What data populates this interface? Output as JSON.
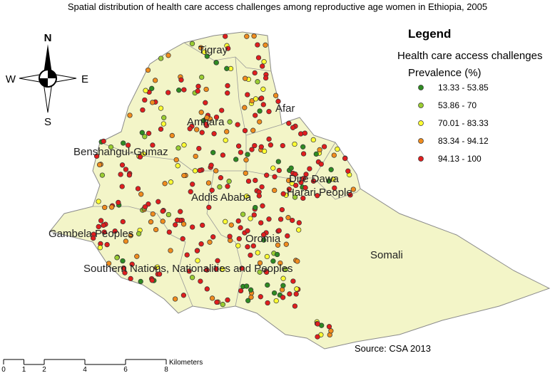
{
  "title": "Spatial distribution of health care access challenges among reproductive age women in Ethiopia, 2005",
  "compass": {
    "north": "N",
    "south": "S",
    "west": "W",
    "east": "E"
  },
  "regions": [
    "Tigray",
    "Amhara",
    "Afar",
    "Benshangul-Gumaz",
    "Dire Dawa",
    "Harari People",
    "Addis Ababa",
    "Gambela Peoples",
    "Oromia",
    "Somali",
    "Southern Nations, Nationalities and Peoples"
  ],
  "legend": {
    "title": "Legend",
    "subtitle": "Health care access challenges",
    "heading": "Prevalence (%)",
    "items": [
      {
        "label": "13.33 - 53.85",
        "color": "#2e8b22"
      },
      {
        "label": "53.86 - 70",
        "color": "#9acd32"
      },
      {
        "label": "70.01 - 83.33",
        "color": "#ffff33"
      },
      {
        "label": "83.34 - 94.12",
        "color": "#f08c1e"
      },
      {
        "label": "94.13 - 100",
        "color": "#e01e1e"
      }
    ]
  },
  "source": "Source: CSA 2013",
  "scale_bar": {
    "unit": "Kilometers",
    "ticks": [
      0,
      1,
      2,
      4,
      6,
      8
    ]
  }
}
